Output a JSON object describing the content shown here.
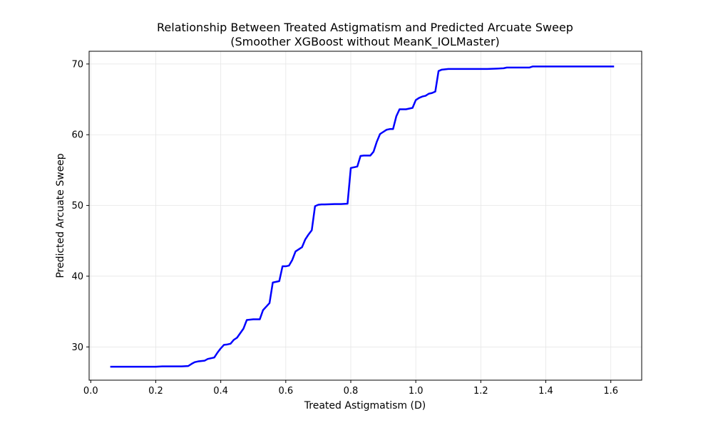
{
  "chart_data": {
    "type": "line",
    "title": "Relationship Between Treated Astigmatism and Predicted Arcuate Sweep",
    "subtitle": "(Smoother XGBoost without MeanK_IOLMaster)",
    "xlabel": "Treated Astigmatism (D)",
    "ylabel": "Predicted Arcuate Sweep",
    "xlim": [
      -0.005,
      1.695
    ],
    "ylim": [
      25.3,
      71.8
    ],
    "xticks": [
      0.0,
      0.2,
      0.4,
      0.6,
      0.8,
      1.0,
      1.2,
      1.4,
      1.6
    ],
    "xtick_labels": [
      "0.0",
      "0.2",
      "0.4",
      "0.6",
      "0.8",
      "1.0",
      "1.2",
      "1.4",
      "1.6"
    ],
    "yticks": [
      30,
      40,
      50,
      60,
      70
    ],
    "ytick_labels": [
      "30",
      "40",
      "50",
      "60",
      "70"
    ],
    "grid": true,
    "legend": "none",
    "series": [
      {
        "color": "#0000ff",
        "x": [
          0.06,
          0.1,
          0.15,
          0.2,
          0.22,
          0.25,
          0.28,
          0.3,
          0.31,
          0.32,
          0.33,
          0.35,
          0.36,
          0.37,
          0.38,
          0.39,
          0.4,
          0.41,
          0.42,
          0.43,
          0.44,
          0.45,
          0.47,
          0.48,
          0.5,
          0.51,
          0.52,
          0.53,
          0.54,
          0.55,
          0.56,
          0.57,
          0.58,
          0.59,
          0.6,
          0.61,
          0.62,
          0.63,
          0.64,
          0.65,
          0.66,
          0.67,
          0.68,
          0.69,
          0.7,
          0.71,
          0.72,
          0.75,
          0.77,
          0.79,
          0.8,
          0.82,
          0.83,
          0.84,
          0.86,
          0.87,
          0.88,
          0.89,
          0.9,
          0.91,
          0.92,
          0.93,
          0.94,
          0.95,
          0.97,
          0.98,
          0.99,
          1.0,
          1.01,
          1.02,
          1.03,
          1.04,
          1.05,
          1.06,
          1.07,
          1.08,
          1.1,
          1.15,
          1.2,
          1.22,
          1.25,
          1.27,
          1.28,
          1.3,
          1.35,
          1.36,
          1.4,
          1.5,
          1.61
        ],
        "values": [
          27.2,
          27.2,
          27.2,
          27.2,
          27.25,
          27.25,
          27.25,
          27.3,
          27.6,
          27.85,
          27.95,
          28.05,
          28.3,
          28.4,
          28.5,
          29.2,
          29.8,
          30.3,
          30.35,
          30.45,
          31.0,
          31.3,
          32.6,
          33.8,
          33.9,
          33.9,
          33.9,
          35.2,
          35.7,
          36.2,
          39.1,
          39.2,
          39.3,
          41.4,
          41.4,
          41.5,
          42.3,
          43.5,
          43.8,
          44.1,
          45.2,
          45.9,
          46.5,
          49.9,
          50.1,
          50.15,
          50.15,
          50.2,
          50.2,
          50.25,
          55.3,
          55.5,
          57.0,
          57.05,
          57.05,
          57.6,
          59.0,
          60.1,
          60.4,
          60.7,
          60.8,
          60.8,
          62.6,
          63.6,
          63.6,
          63.7,
          63.8,
          64.9,
          65.2,
          65.4,
          65.5,
          65.8,
          65.9,
          66.1,
          69.0,
          69.2,
          69.3,
          69.3,
          69.3,
          69.3,
          69.35,
          69.4,
          69.5,
          69.5,
          69.5,
          69.65,
          69.65,
          69.65,
          69.65
        ]
      }
    ]
  }
}
